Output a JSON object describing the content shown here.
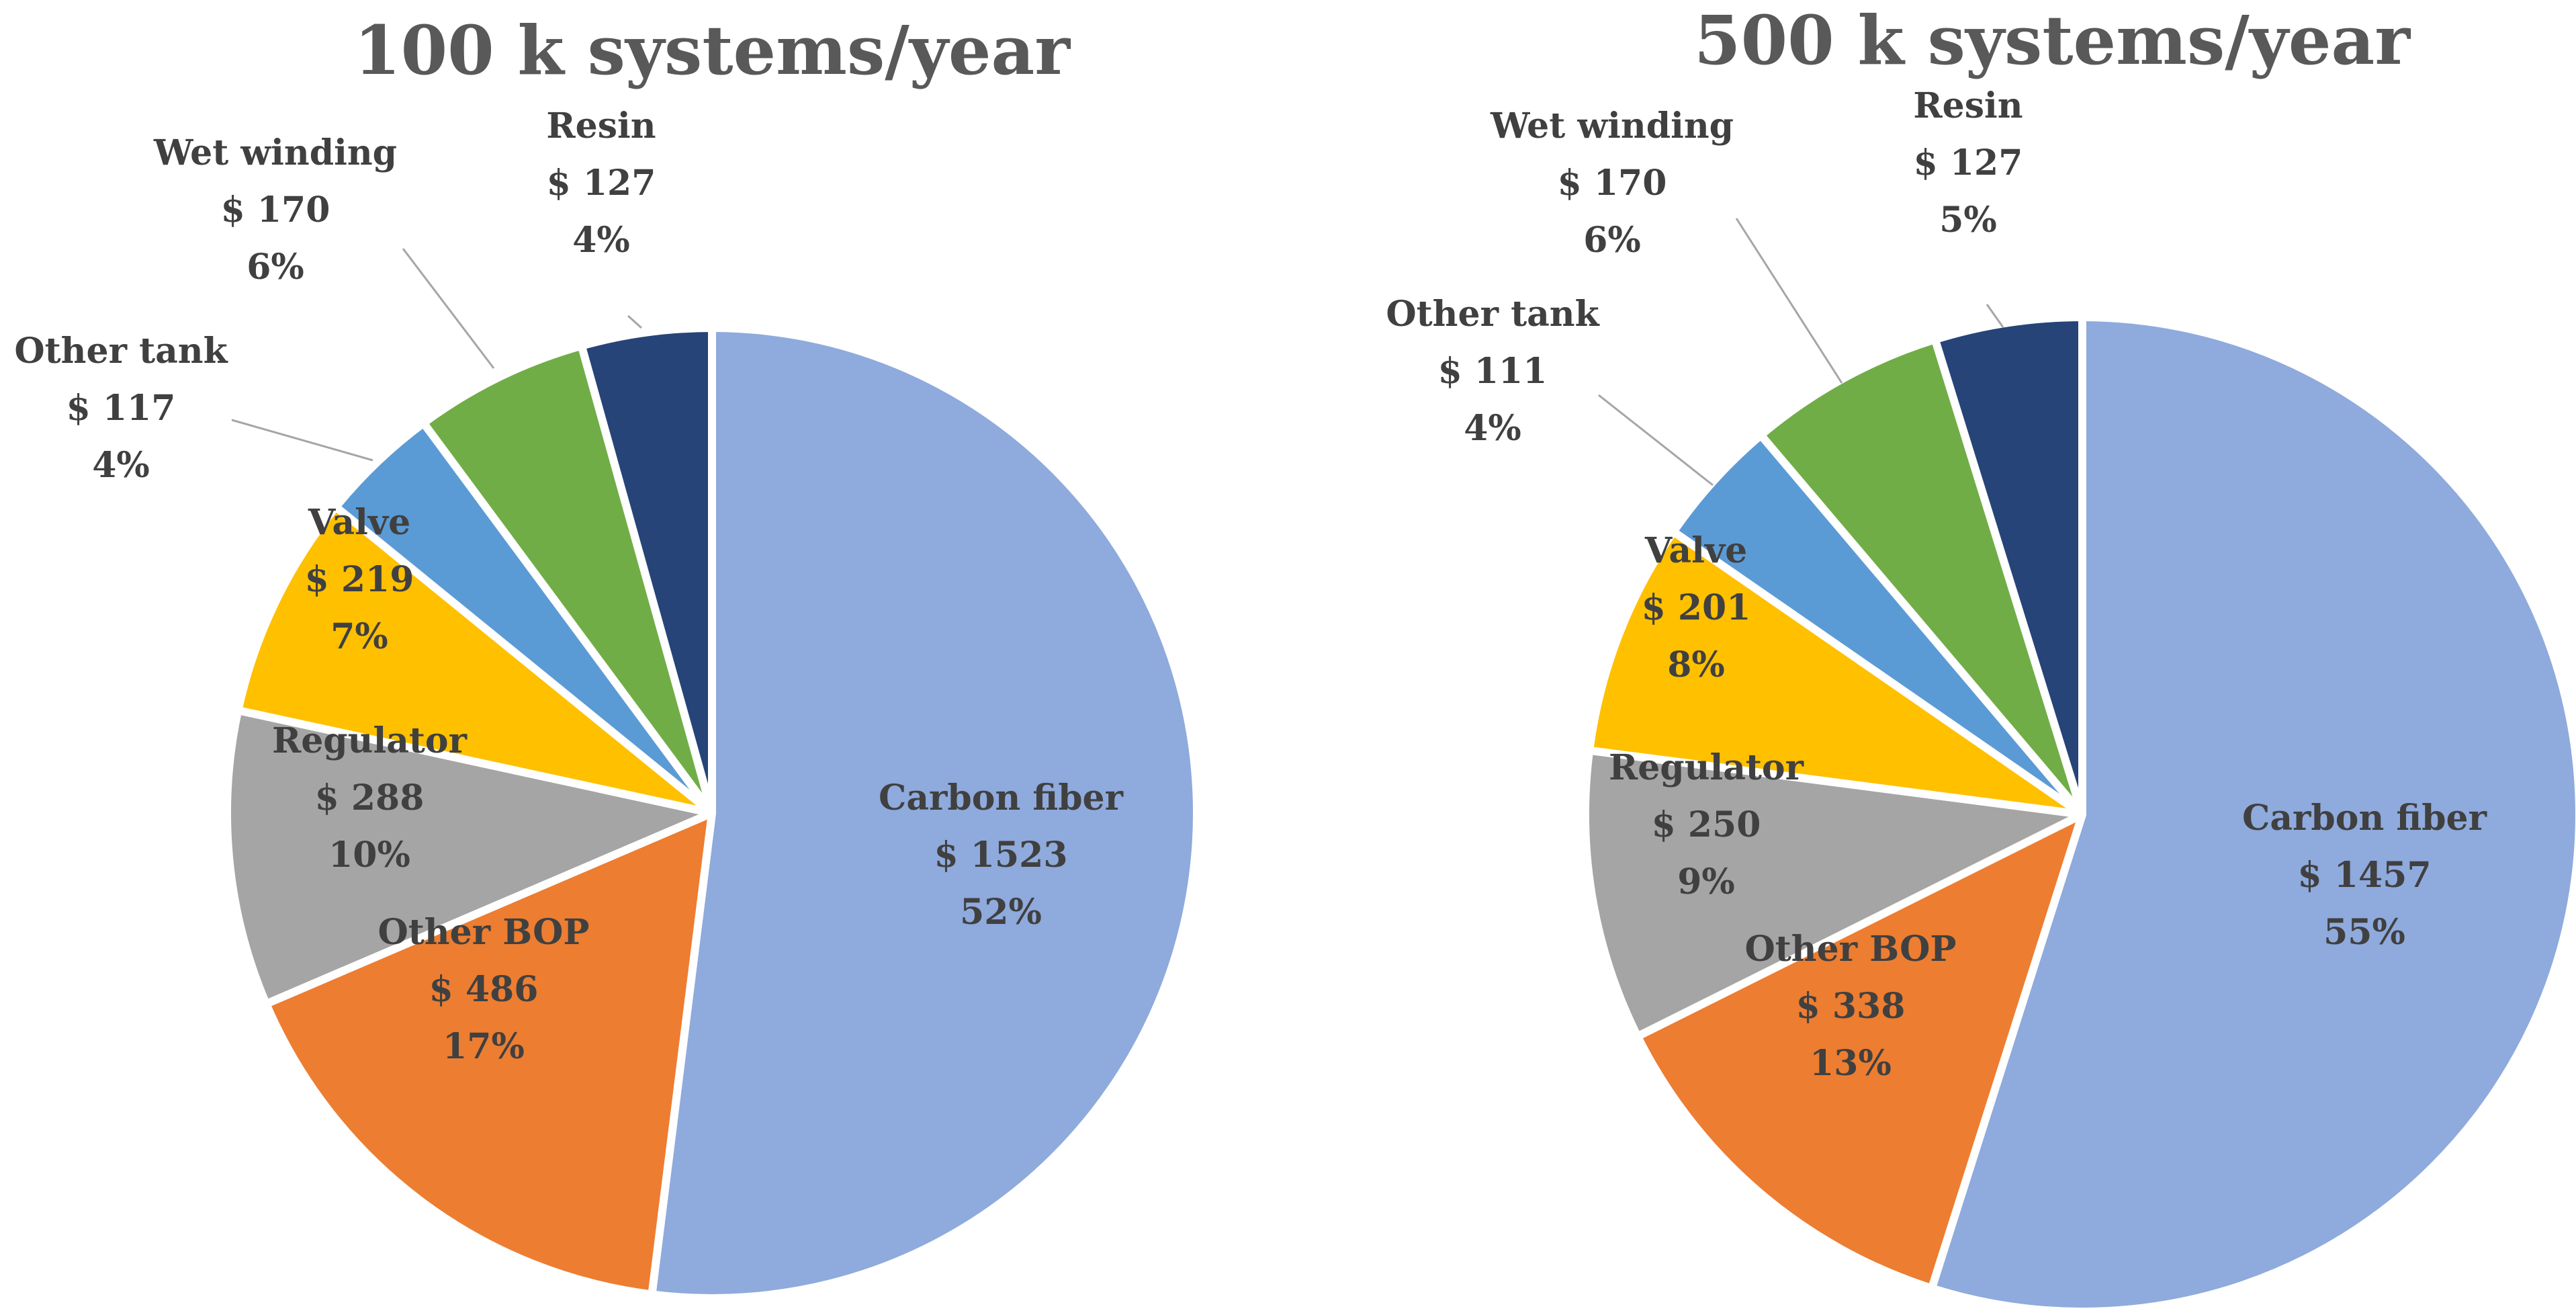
{
  "chart_data": [
    {
      "type": "pie",
      "title": "100 k systems/year",
      "slices": [
        {
          "name": "Carbon fiber",
          "value": 1523,
          "value_label": "$ 1523",
          "percent_label": "52%",
          "color": "#8FAADC"
        },
        {
          "name": "Other BOP",
          "value": 486,
          "value_label": "$ 486",
          "percent_label": "17%",
          "color": "#ED7D31"
        },
        {
          "name": "Regulator",
          "value": 288,
          "value_label": "$ 288",
          "percent_label": "10%",
          "color": "#A5A5A5"
        },
        {
          "name": "Valve",
          "value": 219,
          "value_label": "$ 219",
          "percent_label": "7%",
          "color": "#FFC000"
        },
        {
          "name": "Other tank",
          "value": 117,
          "value_label": "$ 117",
          "percent_label": "4%",
          "color": "#5B9BD5"
        },
        {
          "name": "Wet winding",
          "value": 170,
          "value_label": "$ 170",
          "percent_label": "6%",
          "color": "#70AD47"
        },
        {
          "name": "Resin",
          "value": 127,
          "value_label": "$ 127",
          "percent_label": "4%",
          "color": "#264478"
        }
      ]
    },
    {
      "type": "pie",
      "title": "500 k systems/year",
      "slices": [
        {
          "name": "Carbon fiber",
          "value": 1457,
          "value_label": "$ 1457",
          "percent_label": "55%",
          "color": "#8FAADC"
        },
        {
          "name": "Other BOP",
          "value": 338,
          "value_label": "$ 338",
          "percent_label": "13%",
          "color": "#ED7D31"
        },
        {
          "name": "Regulator",
          "value": 250,
          "value_label": "$ 250",
          "percent_label": "9%",
          "color": "#A5A5A5"
        },
        {
          "name": "Valve",
          "value": 201,
          "value_label": "$ 201",
          "percent_label": "8%",
          "color": "#FFC000"
        },
        {
          "name": "Other tank",
          "value": 111,
          "value_label": "$ 111",
          "percent_label": "4%",
          "color": "#5B9BD5"
        },
        {
          "name": "Wet winding",
          "value": 170,
          "value_label": "$ 170",
          "percent_label": "6%",
          "color": "#70AD47"
        },
        {
          "name": "Resin",
          "value": 127,
          "value_label": "$ 127",
          "percent_label": "5%",
          "color": "#264478"
        }
      ]
    }
  ]
}
